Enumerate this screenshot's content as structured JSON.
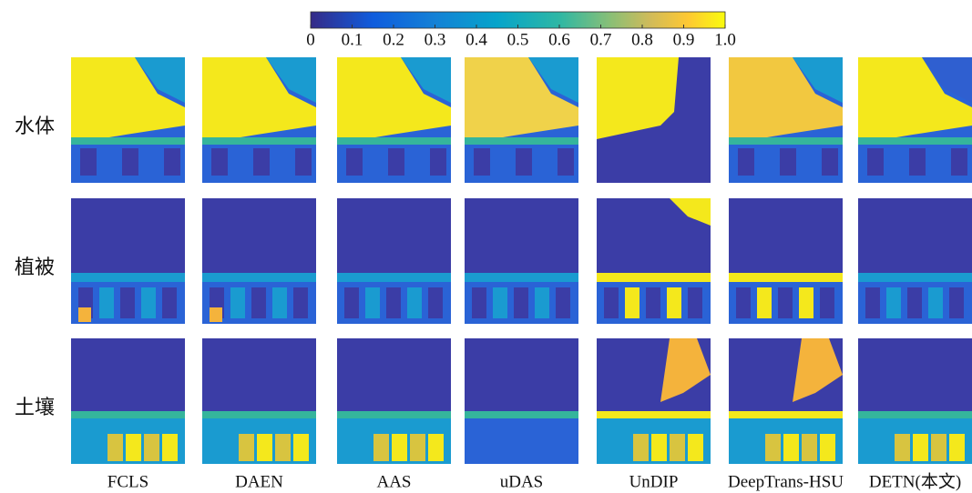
{
  "colorbar": {
    "ticks": [
      0,
      0.1,
      0.2,
      0.3,
      0.4,
      0.5,
      0.6,
      0.7,
      0.8,
      0.9,
      {
        "value": 1,
        "label": "1.0"
      }
    ]
  },
  "rows": [
    "水体",
    "植被",
    "土壤"
  ],
  "columns": [
    "FCLS",
    "DAEN",
    "AAS",
    "uDAS",
    "UnDIP",
    "DeepTrans-HSU",
    "DETN(本文)"
  ]
}
